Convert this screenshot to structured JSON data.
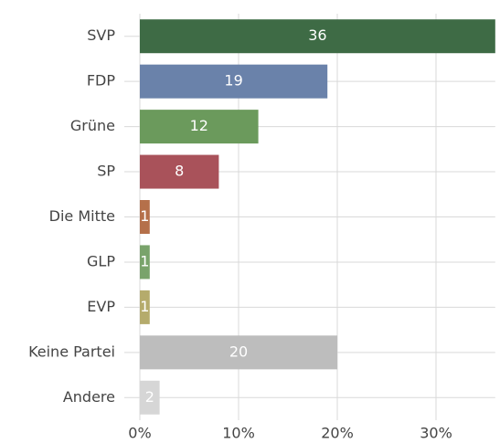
{
  "chart_data": {
    "type": "barh",
    "categories": [
      "SVP",
      "FDP",
      "Grüne",
      "SP",
      "Die Mitte",
      "GLP",
      "EVP",
      "Keine Partei",
      "Andere"
    ],
    "values": [
      36,
      19,
      12,
      8,
      1,
      1,
      1,
      20,
      2
    ],
    "colors": [
      "#3e6b45",
      "#6a82aa",
      "#6b9a5c",
      "#a9525a",
      "#b5704a",
      "#79a36b",
      "#b5ab6c",
      "#bdbdbd",
      "#d6d6d6"
    ],
    "xlim": [
      0,
      36
    ],
    "xticks": [
      {
        "value": 0,
        "label": "0%"
      },
      {
        "value": 10,
        "label": "10%"
      },
      {
        "value": 20,
        "label": "20%"
      },
      {
        "value": 30,
        "label": "30%"
      }
    ],
    "grid": true
  }
}
